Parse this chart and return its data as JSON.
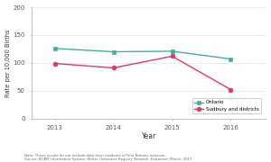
{
  "years": [
    2013,
    2014,
    2015,
    2016
  ],
  "sudbury_values": [
    99,
    91,
    112,
    52
  ],
  "ontario_values": [
    126,
    120,
    121,
    107
  ],
  "sudbury_color": "#d63b6e",
  "ontario_color": "#4aab9a",
  "sudbury_label": "Sudbury and districts",
  "ontario_label": "Ontario",
  "ylabel": "Rate per 10,000 Births",
  "xlabel": "Year",
  "ylim": [
    0,
    200
  ],
  "yticks": [
    0,
    50,
    100,
    150,
    200
  ],
  "note_line1": "Note: These results do not include data from residents of First Nations reserves.",
  "note_line2": "Source: BORN Information System, Better Outcomes Registry Network. Extracted: March, 2017",
  "bg_color": "#ffffff",
  "plot_bg_color": "#ffffff",
  "grid_color": "#e8e8e8"
}
